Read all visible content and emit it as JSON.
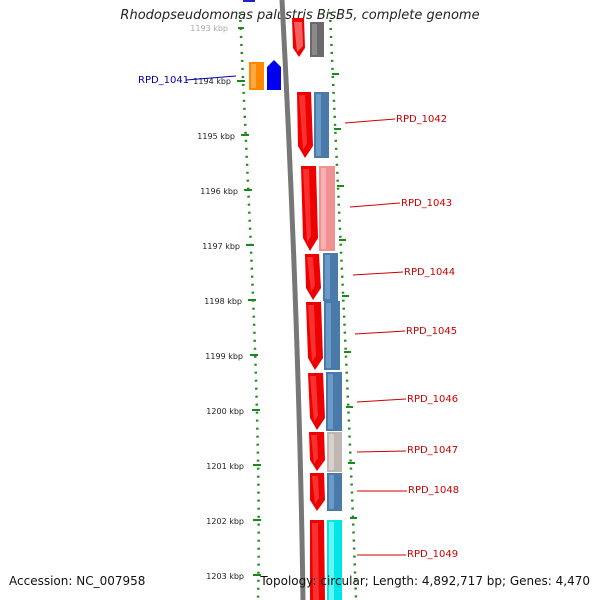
{
  "title": "Rhodopseudomonas palustris BisB5, complete genome",
  "footer": {
    "accession": "Accession: NC_007958",
    "summary": "Topology: circular; Length: 4,892,717 bp; Genes: 4,470"
  },
  "ticks": [
    "1193 kbp",
    "1194 kbp",
    "1195 kbp",
    "1196 kbp",
    "1197 kbp",
    "1198 kbp",
    "1199 kbp",
    "1200 kbp",
    "1201 kbp",
    "1202 kbp",
    "1203 kbp"
  ],
  "genes": [
    {
      "label": "RPD_1041",
      "label_color": "#0000aa"
    },
    {
      "label": "RPD_1042",
      "label_color": "#cc0000"
    },
    {
      "label": "RPD_1043",
      "label_color": "#cc0000"
    },
    {
      "label": "RPD_1044",
      "label_color": "#cc0000"
    },
    {
      "label": "RPD_1045",
      "label_color": "#cc0000"
    },
    {
      "label": "RPD_1046",
      "label_color": "#cc0000"
    },
    {
      "label": "RPD_1047",
      "label_color": "#cc0000"
    },
    {
      "label": "RPD_1048",
      "label_color": "#cc0000"
    },
    {
      "label": "RPD_1049",
      "label_color": "#cc0000"
    }
  ],
  "colors": {
    "backbone": "#777777",
    "ruler_dots": "#1a8a1a",
    "tick_marks": "#1a8a1a",
    "cds_forward": "#ee0000",
    "cds_pink": "#f09090",
    "steelblue": "#4a7aaa",
    "gray_block": "#6a6a6a",
    "light_gray": "#c0b8b0",
    "cyan": "#00e5e5",
    "orange": "#ff8800",
    "blue": "#0000ee"
  }
}
